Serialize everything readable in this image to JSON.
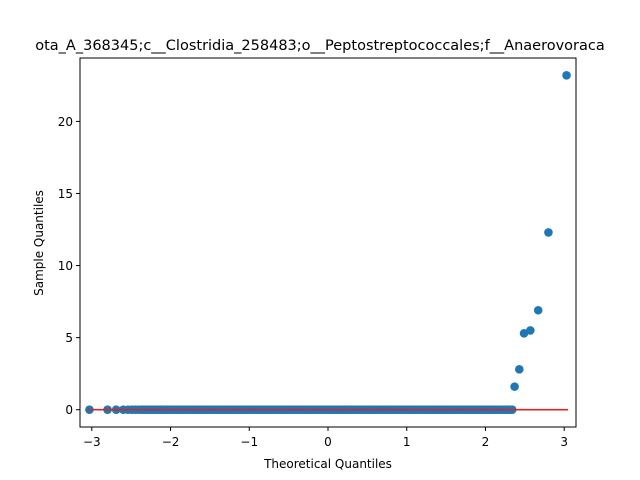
{
  "chart_data": {
    "type": "scatter",
    "title": "ota_A_368345;c__Clostridia_258483;o__Peptostreptococcales;f__Anaerovoraca",
    "xlabel": "Theoretical Quantiles",
    "ylabel": "Sample Quantiles",
    "xlim": [
      -3.15,
      3.15
    ],
    "ylim": [
      -1.2,
      24.4
    ],
    "xticks": [
      -3,
      -2,
      -1,
      0,
      1,
      2,
      3
    ],
    "xtick_labels": [
      "−3",
      "−2",
      "−1",
      "0",
      "1",
      "2",
      "3"
    ],
    "yticks": [
      0,
      5,
      10,
      15,
      20
    ],
    "ytick_labels": [
      "0",
      "5",
      "10",
      "15",
      "20"
    ],
    "grid": false,
    "marker_color": "#1f77b4",
    "line_color": "#d62728",
    "reference_line": {
      "x": [
        -3.05,
        3.05
      ],
      "y": [
        0,
        0
      ]
    },
    "zero_points": {
      "x": [
        -3.03,
        -2.8,
        -2.69,
        -2.6,
        -2.54,
        -2.49,
        -2.45,
        -2.41,
        -2.37,
        -2.34,
        -2.31,
        -2.28,
        -2.25,
        -2.22,
        -2.19,
        -2.16,
        -2.13,
        -2.1,
        -2.07,
        -2.04,
        -2.01,
        -1.98,
        -1.95,
        -1.92,
        -1.89,
        -1.86,
        -1.83,
        -1.8,
        -1.77,
        -1.74,
        -1.71,
        -1.68,
        -1.65,
        -1.62,
        -1.59,
        -1.56,
        -1.53,
        -1.5,
        -1.47,
        -1.44,
        -1.41,
        -1.38,
        -1.35,
        -1.32,
        -1.29,
        -1.26,
        -1.23,
        -1.2,
        -1.17,
        -1.14,
        -1.11,
        -1.08,
        -1.05,
        -1.02,
        -0.99,
        -0.96,
        -0.93,
        -0.9,
        -0.87,
        -0.84,
        -0.81,
        -0.78,
        -0.75,
        -0.72,
        -0.69,
        -0.66,
        -0.63,
        -0.6,
        -0.57,
        -0.54,
        -0.51,
        -0.48,
        -0.45,
        -0.42,
        -0.39,
        -0.36,
        -0.33,
        -0.3,
        -0.27,
        -0.24,
        -0.21,
        -0.18,
        -0.15,
        -0.12,
        -0.09,
        -0.06,
        -0.03,
        0,
        0.03,
        0.06,
        0.09,
        0.12,
        0.15,
        0.18,
        0.21,
        0.24,
        0.27,
        0.3,
        0.33,
        0.36,
        0.39,
        0.42,
        0.45,
        0.48,
        0.51,
        0.54,
        0.57,
        0.6,
        0.63,
        0.66,
        0.69,
        0.72,
        0.75,
        0.78,
        0.81,
        0.84,
        0.87,
        0.9,
        0.93,
        0.96,
        0.99,
        1.02,
        1.05,
        1.08,
        1.11,
        1.14,
        1.17,
        1.2,
        1.23,
        1.26,
        1.29,
        1.32,
        1.35,
        1.38,
        1.41,
        1.44,
        1.47,
        1.5,
        1.53,
        1.56,
        1.59,
        1.62,
        1.65,
        1.68,
        1.71,
        1.74,
        1.77,
        1.8,
        1.83,
        1.86,
        1.89,
        1.92,
        1.95,
        1.98,
        2.01,
        2.04,
        2.07,
        2.1,
        2.13,
        2.16,
        2.19,
        2.22,
        2.25,
        2.28,
        2.31,
        2.34
      ],
      "y": 0
    },
    "outlier_points": [
      {
        "x": 2.37,
        "y": 1.6
      },
      {
        "x": 2.43,
        "y": 2.8
      },
      {
        "x": 2.49,
        "y": 5.3
      },
      {
        "x": 2.57,
        "y": 5.5
      },
      {
        "x": 2.67,
        "y": 6.9
      },
      {
        "x": 2.8,
        "y": 12.3
      },
      {
        "x": 3.03,
        "y": 23.2
      }
    ]
  }
}
